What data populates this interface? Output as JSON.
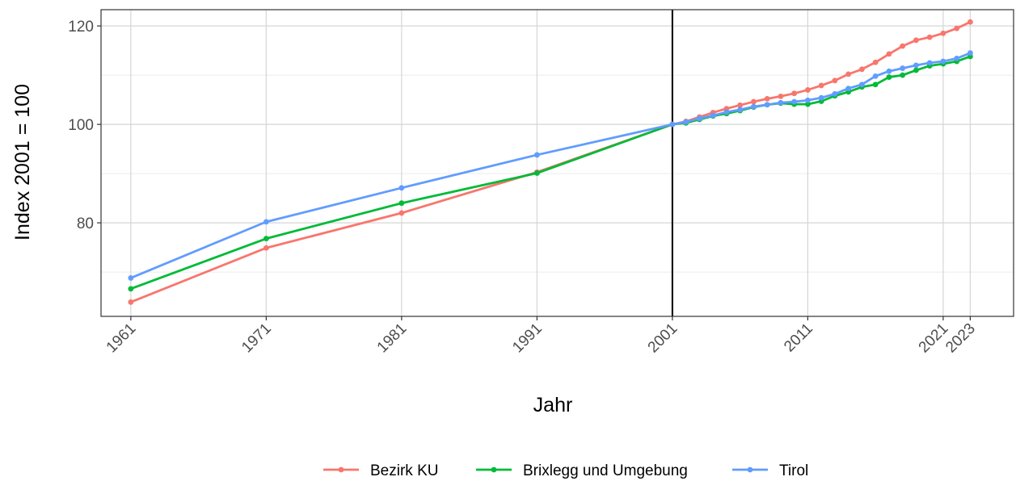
{
  "chart_data": {
    "type": "line",
    "title": "",
    "xlabel": "Jahr",
    "ylabel": "Index 2001 = 100",
    "xlim": [
      1958.8,
      2026.2
    ],
    "ylim": [
      61.0,
      123.3
    ],
    "x_ticks": [
      1961,
      1971,
      1981,
      1991,
      2001,
      2011,
      2021,
      2023
    ],
    "x_tick_labels": [
      "1961",
      "1971",
      "1981",
      "1991",
      "2001",
      "2011",
      "2021",
      "2023"
    ],
    "y_ticks": [
      80,
      100,
      120
    ],
    "y_tick_labels": [
      "80",
      "100",
      "120"
    ],
    "y_minor_ticks": [
      70,
      90,
      110
    ],
    "grid": true,
    "vertical_reference_line": 2001,
    "legend_position": "bottom",
    "series": [
      {
        "name": "Bezirk KU",
        "color": "#F8766D",
        "x": [
          1961,
          1971,
          1981,
          1991,
          2001,
          2002,
          2003,
          2004,
          2005,
          2006,
          2007,
          2008,
          2009,
          2010,
          2011,
          2012,
          2013,
          2014,
          2015,
          2016,
          2017,
          2018,
          2019,
          2020,
          2021,
          2022,
          2023
        ],
        "y": [
          63.9,
          74.9,
          82.0,
          90.3,
          100.0,
          100.6,
          101.5,
          102.4,
          103.2,
          103.9,
          104.6,
          105.2,
          105.7,
          106.3,
          107.0,
          107.9,
          108.9,
          110.2,
          111.2,
          112.6,
          114.3,
          115.9,
          117.1,
          117.7,
          118.5,
          119.5,
          120.8
        ]
      },
      {
        "name": "Brixlegg und Umgebung",
        "color": "#00BA38",
        "x": [
          1961,
          1971,
          1981,
          1991,
          2001,
          2002,
          2003,
          2004,
          2005,
          2006,
          2007,
          2008,
          2009,
          2010,
          2011,
          2012,
          2013,
          2014,
          2015,
          2016,
          2017,
          2018,
          2019,
          2020,
          2021,
          2022,
          2023
        ],
        "y": [
          66.6,
          76.8,
          84.0,
          90.1,
          100.0,
          100.3,
          101.0,
          101.7,
          102.2,
          102.8,
          103.5,
          104.0,
          104.3,
          104.1,
          104.1,
          104.7,
          105.8,
          106.6,
          107.6,
          108.1,
          109.6,
          110.0,
          111.0,
          111.9,
          112.3,
          112.8,
          113.8
        ]
      },
      {
        "name": "Tirol",
        "color": "#619CFF",
        "x": [
          1961,
          1971,
          1981,
          1991,
          2001,
          2002,
          2003,
          2004,
          2005,
          2006,
          2007,
          2008,
          2009,
          2010,
          2011,
          2012,
          2013,
          2014,
          2015,
          2016,
          2017,
          2018,
          2019,
          2020,
          2021,
          2022,
          2023
        ],
        "y": [
          68.8,
          80.2,
          87.1,
          93.8,
          100.0,
          100.5,
          101.2,
          101.8,
          102.5,
          103.0,
          103.6,
          104.0,
          104.4,
          104.6,
          104.9,
          105.4,
          106.2,
          107.3,
          108.1,
          109.8,
          110.8,
          111.4,
          112.0,
          112.5,
          112.8,
          113.4,
          114.5
        ]
      }
    ]
  }
}
